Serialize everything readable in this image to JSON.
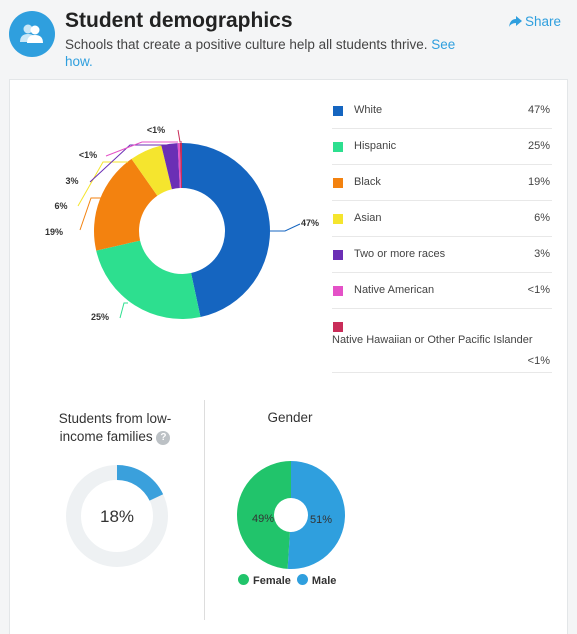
{
  "header": {
    "title": "Student demographics",
    "subtitle": "Schools that create a positive culture help all students thrive.",
    "see_how": "See how.",
    "share_label": "Share",
    "avatar_icon": "people-icon",
    "share_icon": "share-arrow-icon"
  },
  "ethnicity": {
    "chart_data": {
      "type": "pie",
      "categories": [
        "White",
        "Hispanic",
        "Black",
        "Asian",
        "Two or more races",
        "Native American",
        "Native Hawaiian or Other Pacific Islander"
      ],
      "values": [
        47,
        25,
        19,
        6,
        3,
        0.4,
        0.4
      ],
      "labels": [
        "47%",
        "25%",
        "19%",
        "6%",
        "3%",
        "<1%",
        "<1%"
      ],
      "colors": [
        "#1565c0",
        "#2ddf8f",
        "#f3820f",
        "#f5e52e",
        "#6b2fb5",
        "#e451c7",
        "#c92d59"
      ]
    },
    "legend": [
      {
        "label": "White",
        "value": "47%",
        "color": "#1565c0"
      },
      {
        "label": "Hispanic",
        "value": "25%",
        "color": "#2ddf8f"
      },
      {
        "label": "Black",
        "value": "19%",
        "color": "#f3820f"
      },
      {
        "label": "Asian",
        "value": "6%",
        "color": "#f5e52e"
      },
      {
        "label": "Two or more races",
        "value": "3%",
        "color": "#6b2fb5"
      },
      {
        "label": "Native American",
        "value": "<1%",
        "color": "#e451c7"
      },
      {
        "label": "Native Hawaiian or Other Pacific Islander",
        "value": "<1%",
        "color": "#c92d59"
      }
    ]
  },
  "low_income": {
    "title": "Students from low-income families",
    "help_icon": "question-icon",
    "value_label": "18%",
    "value": 18,
    "color": "#3aa0dc",
    "track_color": "#eef1f3"
  },
  "gender": {
    "title": "Gender",
    "chart_data": {
      "type": "pie",
      "categories": [
        "Female",
        "Male"
      ],
      "values": [
        49,
        51
      ],
      "labels": [
        "49%",
        "51%"
      ],
      "colors": [
        "#21c46b",
        "#2f9fde"
      ]
    },
    "legend": [
      {
        "label": "Female",
        "color": "#21c46b"
      },
      {
        "label": "Male",
        "color": "#2f9fde"
      }
    ]
  }
}
